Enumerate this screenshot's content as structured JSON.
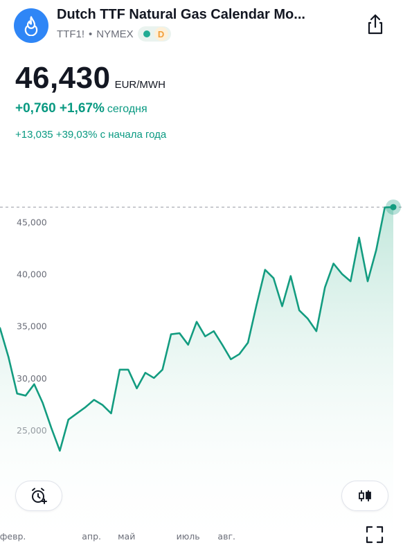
{
  "header": {
    "title": "Dutch TTF Natural Gas Calendar Mo...",
    "ticker": "TTF1!",
    "separator": "•",
    "exchange": "NYMEX",
    "badge_letter": "D",
    "logo_icon": "flame-icon",
    "share_icon": "share-icon"
  },
  "quote": {
    "price": "46,430",
    "currency": "EUR/MWH",
    "change_today": "+0,760 +1,67%",
    "change_today_label": "сегодня",
    "change_ytd": "+13,035 +39,03% с начала года"
  },
  "colors": {
    "line": "#139C80",
    "fill_top": "#BFE6DA",
    "positive": "#089981",
    "logo_bg": "#2F86F6"
  },
  "chart_data": {
    "type": "area",
    "x": [
      0,
      1,
      2,
      3,
      4,
      5,
      6,
      7,
      8,
      9,
      10,
      11,
      12,
      13,
      14,
      15,
      16,
      17,
      18,
      19,
      20,
      21,
      22,
      23,
      24,
      25,
      26,
      27,
      28,
      29,
      30,
      31,
      32,
      33,
      34,
      35,
      36,
      37,
      38,
      39,
      40,
      41,
      42,
      43,
      44,
      45,
      46
    ],
    "values": [
      34.8,
      32.0,
      28.5,
      28.3,
      29.4,
      27.6,
      25.2,
      23.0,
      26.0,
      26.6,
      27.2,
      27.9,
      27.4,
      26.6,
      30.8,
      30.8,
      29.0,
      30.5,
      30.0,
      30.8,
      34.2,
      34.3,
      33.2,
      35.4,
      34.0,
      34.5,
      33.2,
      31.8,
      32.3,
      33.4,
      37.0,
      40.4,
      39.6,
      36.9,
      39.8,
      36.5,
      35.7,
      34.5,
      38.7,
      41.0,
      40.0,
      39.3,
      43.5,
      39.3,
      42.3,
      46.4,
      46.43
    ],
    "y_ticks": [
      "45,000",
      "40,000",
      "35,000",
      "30,000",
      "25,000"
    ],
    "y_tick_values": [
      45,
      40,
      35,
      30,
      25
    ],
    "x_ticks": [
      "февр.",
      "апр.",
      "май",
      "июль",
      "авг."
    ],
    "x_tick_positions": [
      1.5,
      10.7,
      14.8,
      22.0,
      26.5
    ],
    "last_value": 46.43,
    "ylim": [
      19.2,
      48.5
    ],
    "grid": false
  },
  "controls": {
    "alert_icon": "alarm-add-icon",
    "candles_icon": "candlestick-icon",
    "fullscreen_icon": "fullscreen-icon"
  }
}
